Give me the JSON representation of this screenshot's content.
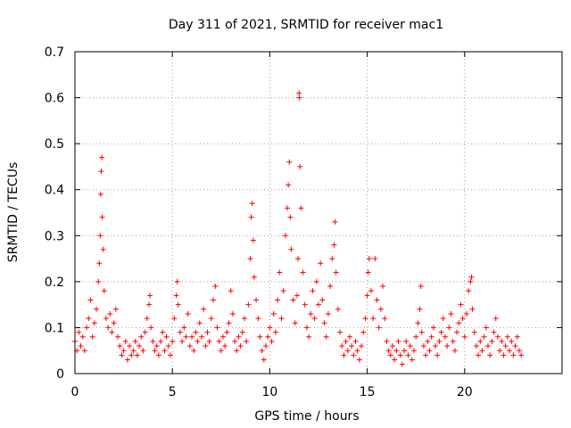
{
  "chart_data": {
    "type": "scatter",
    "title": "Day 311 of 2021, SRMTID for receiver mac1",
    "xlabel": "GPS time / hours",
    "ylabel": "SRMTID / TECUs",
    "xlim": [
      0,
      25
    ],
    "ylim": [
      0,
      0.7
    ],
    "xticks": [
      0,
      5,
      10,
      15,
      20
    ],
    "xtick_labels": [
      "0",
      "5",
      "10",
      "15",
      "20"
    ],
    "yticks": [
      0,
      0.1,
      0.2,
      0.3,
      0.4,
      0.5,
      0.6,
      0.7
    ],
    "ytick_labels": [
      "0",
      "0.1",
      "0.2",
      "0.3",
      "0.4",
      "0.5",
      "0.6",
      "0.7"
    ],
    "grid": true,
    "marker": "+",
    "color": "#ff0000",
    "series": [
      {
        "name": "SRMTID",
        "points": [
          [
            0.0,
            0.07
          ],
          [
            0.1,
            0.05
          ],
          [
            0.2,
            0.09
          ],
          [
            0.3,
            0.06
          ],
          [
            0.4,
            0.08
          ],
          [
            0.5,
            0.05
          ],
          [
            0.6,
            0.1
          ],
          [
            0.7,
            0.12
          ],
          [
            0.8,
            0.16
          ],
          [
            0.9,
            0.08
          ],
          [
            1.0,
            0.11
          ],
          [
            1.1,
            0.14
          ],
          [
            1.2,
            0.2
          ],
          [
            1.25,
            0.24
          ],
          [
            1.3,
            0.3
          ],
          [
            1.32,
            0.39
          ],
          [
            1.35,
            0.44
          ],
          [
            1.38,
            0.47
          ],
          [
            1.4,
            0.34
          ],
          [
            1.45,
            0.27
          ],
          [
            1.5,
            0.18
          ],
          [
            1.6,
            0.12
          ],
          [
            1.7,
            0.1
          ],
          [
            1.8,
            0.13
          ],
          [
            1.9,
            0.09
          ],
          [
            2.0,
            0.11
          ],
          [
            2.1,
            0.14
          ],
          [
            2.2,
            0.08
          ],
          [
            2.3,
            0.06
          ],
          [
            2.4,
            0.04
          ],
          [
            2.5,
            0.05
          ],
          [
            2.6,
            0.07
          ],
          [
            2.7,
            0.03
          ],
          [
            2.8,
            0.06
          ],
          [
            2.9,
            0.04
          ],
          [
            3.0,
            0.05
          ],
          [
            3.1,
            0.07
          ],
          [
            3.2,
            0.04
          ],
          [
            3.3,
            0.06
          ],
          [
            3.4,
            0.08
          ],
          [
            3.5,
            0.05
          ],
          [
            3.6,
            0.09
          ],
          [
            3.7,
            0.12
          ],
          [
            3.8,
            0.15
          ],
          [
            3.85,
            0.17
          ],
          [
            3.9,
            0.1
          ],
          [
            4.0,
            0.07
          ],
          [
            4.1,
            0.05
          ],
          [
            4.2,
            0.06
          ],
          [
            4.3,
            0.04
          ],
          [
            4.4,
            0.07
          ],
          [
            4.5,
            0.09
          ],
          [
            4.6,
            0.05
          ],
          [
            4.7,
            0.08
          ],
          [
            4.8,
            0.06
          ],
          [
            4.9,
            0.04
          ],
          [
            5.0,
            0.07
          ],
          [
            5.1,
            0.12
          ],
          [
            5.2,
            0.17
          ],
          [
            5.25,
            0.2
          ],
          [
            5.3,
            0.15
          ],
          [
            5.4,
            0.09
          ],
          [
            5.5,
            0.07
          ],
          [
            5.6,
            0.1
          ],
          [
            5.7,
            0.08
          ],
          [
            5.8,
            0.13
          ],
          [
            5.9,
            0.06
          ],
          [
            6.0,
            0.08
          ],
          [
            6.1,
            0.05
          ],
          [
            6.2,
            0.09
          ],
          [
            6.3,
            0.07
          ],
          [
            6.4,
            0.11
          ],
          [
            6.5,
            0.08
          ],
          [
            6.6,
            0.14
          ],
          [
            6.7,
            0.06
          ],
          [
            6.8,
            0.09
          ],
          [
            6.9,
            0.07
          ],
          [
            7.0,
            0.12
          ],
          [
            7.1,
            0.16
          ],
          [
            7.2,
            0.19
          ],
          [
            7.3,
            0.1
          ],
          [
            7.4,
            0.07
          ],
          [
            7.5,
            0.05
          ],
          [
            7.6,
            0.08
          ],
          [
            7.7,
            0.06
          ],
          [
            7.8,
            0.09
          ],
          [
            7.9,
            0.11
          ],
          [
            8.0,
            0.18
          ],
          [
            8.1,
            0.13
          ],
          [
            8.2,
            0.07
          ],
          [
            8.3,
            0.05
          ],
          [
            8.4,
            0.08
          ],
          [
            8.5,
            0.06
          ],
          [
            8.6,
            0.09
          ],
          [
            8.7,
            0.12
          ],
          [
            8.8,
            0.07
          ],
          [
            8.9,
            0.15
          ],
          [
            9.0,
            0.25
          ],
          [
            9.05,
            0.34
          ],
          [
            9.1,
            0.37
          ],
          [
            9.15,
            0.29
          ],
          [
            9.2,
            0.21
          ],
          [
            9.3,
            0.16
          ],
          [
            9.4,
            0.12
          ],
          [
            9.5,
            0.08
          ],
          [
            9.6,
            0.05
          ],
          [
            9.7,
            0.03
          ],
          [
            9.8,
            0.06
          ],
          [
            9.9,
            0.08
          ],
          [
            10.0,
            0.1
          ],
          [
            10.1,
            0.07
          ],
          [
            10.2,
            0.13
          ],
          [
            10.3,
            0.09
          ],
          [
            10.4,
            0.16
          ],
          [
            10.5,
            0.22
          ],
          [
            10.6,
            0.12
          ],
          [
            10.7,
            0.18
          ],
          [
            10.8,
            0.3
          ],
          [
            10.9,
            0.36
          ],
          [
            10.95,
            0.41
          ],
          [
            11.0,
            0.46
          ],
          [
            11.05,
            0.34
          ],
          [
            11.1,
            0.27
          ],
          [
            11.2,
            0.16
          ],
          [
            11.3,
            0.11
          ],
          [
            11.4,
            0.17
          ],
          [
            11.45,
            0.25
          ],
          [
            11.5,
            0.61
          ],
          [
            11.52,
            0.6
          ],
          [
            11.55,
            0.45
          ],
          [
            11.6,
            0.36
          ],
          [
            11.7,
            0.22
          ],
          [
            11.8,
            0.15
          ],
          [
            11.9,
            0.1
          ],
          [
            12.0,
            0.08
          ],
          [
            12.1,
            0.13
          ],
          [
            12.2,
            0.18
          ],
          [
            12.3,
            0.12
          ],
          [
            12.4,
            0.2
          ],
          [
            12.5,
            0.15
          ],
          [
            12.6,
            0.24
          ],
          [
            12.7,
            0.16
          ],
          [
            12.8,
            0.11
          ],
          [
            12.9,
            0.08
          ],
          [
            13.0,
            0.13
          ],
          [
            13.1,
            0.19
          ],
          [
            13.2,
            0.25
          ],
          [
            13.3,
            0.28
          ],
          [
            13.35,
            0.33
          ],
          [
            13.4,
            0.22
          ],
          [
            13.5,
            0.14
          ],
          [
            13.6,
            0.09
          ],
          [
            13.7,
            0.06
          ],
          [
            13.8,
            0.04
          ],
          [
            13.9,
            0.07
          ],
          [
            14.0,
            0.05
          ],
          [
            14.1,
            0.08
          ],
          [
            14.2,
            0.06
          ],
          [
            14.3,
            0.04
          ],
          [
            14.4,
            0.07
          ],
          [
            14.5,
            0.05
          ],
          [
            14.6,
            0.03
          ],
          [
            14.7,
            0.06
          ],
          [
            14.8,
            0.09
          ],
          [
            14.9,
            0.12
          ],
          [
            15.0,
            0.17
          ],
          [
            15.05,
            0.22
          ],
          [
            15.1,
            0.25
          ],
          [
            15.2,
            0.18
          ],
          [
            15.3,
            0.12
          ],
          [
            15.4,
            0.25
          ],
          [
            15.5,
            0.16
          ],
          [
            15.6,
            0.1
          ],
          [
            15.7,
            0.14
          ],
          [
            15.8,
            0.19
          ],
          [
            15.9,
            0.12
          ],
          [
            16.0,
            0.07
          ],
          [
            16.1,
            0.05
          ],
          [
            16.2,
            0.04
          ],
          [
            16.3,
            0.06
          ],
          [
            16.4,
            0.03
          ],
          [
            16.5,
            0.05
          ],
          [
            16.6,
            0.07
          ],
          [
            16.7,
            0.04
          ],
          [
            16.8,
            0.02
          ],
          [
            16.9,
            0.05
          ],
          [
            17.0,
            0.07
          ],
          [
            17.1,
            0.04
          ],
          [
            17.2,
            0.06
          ],
          [
            17.3,
            0.03
          ],
          [
            17.4,
            0.05
          ],
          [
            17.5,
            0.08
          ],
          [
            17.6,
            0.11
          ],
          [
            17.7,
            0.14
          ],
          [
            17.75,
            0.19
          ],
          [
            17.8,
            0.09
          ],
          [
            17.9,
            0.06
          ],
          [
            18.0,
            0.04
          ],
          [
            18.1,
            0.07
          ],
          [
            18.2,
            0.05
          ],
          [
            18.3,
            0.08
          ],
          [
            18.4,
            0.1
          ],
          [
            18.5,
            0.06
          ],
          [
            18.6,
            0.04
          ],
          [
            18.7,
            0.07
          ],
          [
            18.8,
            0.09
          ],
          [
            18.9,
            0.12
          ],
          [
            19.0,
            0.08
          ],
          [
            19.1,
            0.06
          ],
          [
            19.2,
            0.1
          ],
          [
            19.3,
            0.13
          ],
          [
            19.4,
            0.07
          ],
          [
            19.5,
            0.05
          ],
          [
            19.6,
            0.09
          ],
          [
            19.7,
            0.11
          ],
          [
            19.8,
            0.15
          ],
          [
            19.9,
            0.12
          ],
          [
            20.0,
            0.08
          ],
          [
            20.1,
            0.13
          ],
          [
            20.2,
            0.18
          ],
          [
            20.3,
            0.2
          ],
          [
            20.35,
            0.21
          ],
          [
            20.4,
            0.14
          ],
          [
            20.5,
            0.09
          ],
          [
            20.6,
            0.06
          ],
          [
            20.7,
            0.04
          ],
          [
            20.8,
            0.07
          ],
          [
            20.9,
            0.05
          ],
          [
            21.0,
            0.08
          ],
          [
            21.1,
            0.1
          ],
          [
            21.2,
            0.06
          ],
          [
            21.3,
            0.04
          ],
          [
            21.4,
            0.07
          ],
          [
            21.5,
            0.09
          ],
          [
            21.6,
            0.12
          ],
          [
            21.7,
            0.08
          ],
          [
            21.8,
            0.05
          ],
          [
            21.9,
            0.07
          ],
          [
            22.0,
            0.04
          ],
          [
            22.1,
            0.06
          ],
          [
            22.2,
            0.08
          ],
          [
            22.3,
            0.05
          ],
          [
            22.4,
            0.07
          ],
          [
            22.5,
            0.04
          ],
          [
            22.6,
            0.06
          ],
          [
            22.7,
            0.08
          ],
          [
            22.8,
            0.05
          ],
          [
            22.9,
            0.04
          ]
        ]
      }
    ]
  }
}
